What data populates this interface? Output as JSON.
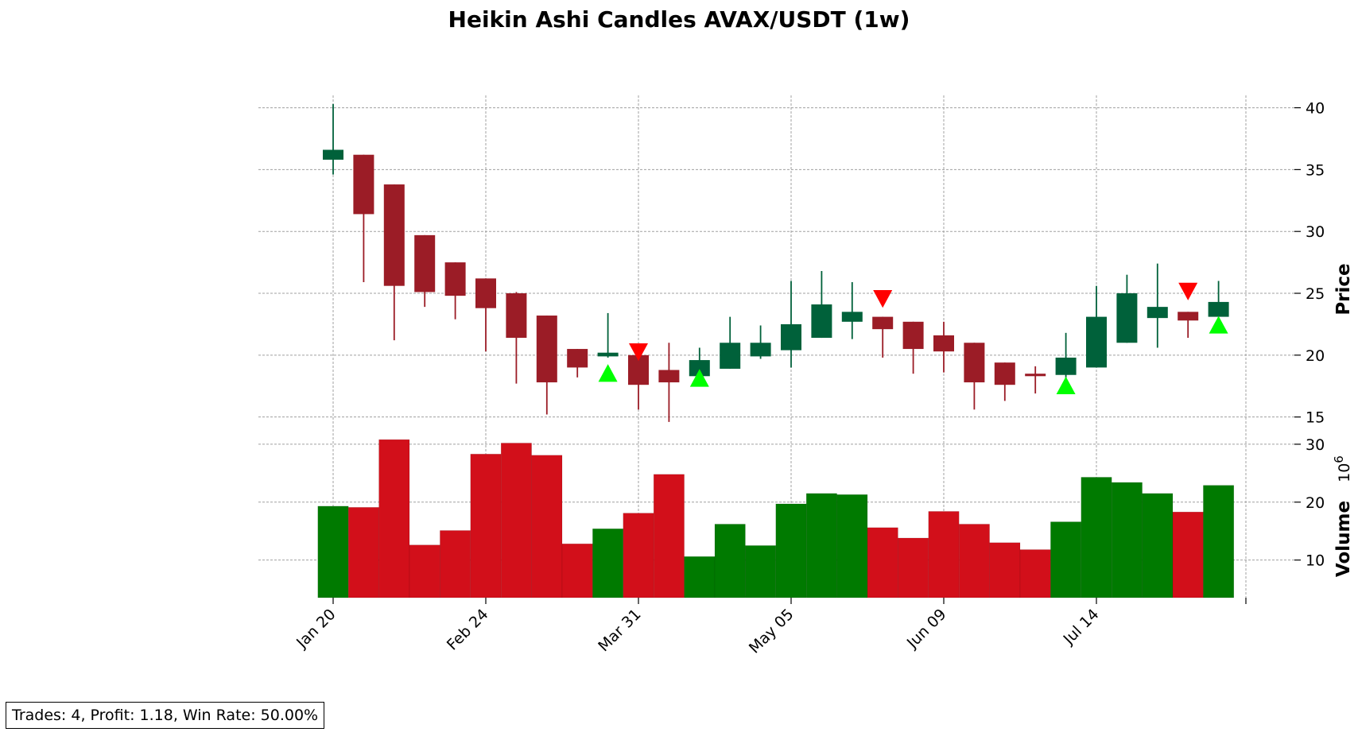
{
  "chart_data": {
    "type": "candlestick",
    "title": "Heikin Ashi Candles AVAX/USDT (1w)",
    "price_axis": {
      "label": "Price",
      "ticks": [
        15,
        20,
        25,
        30,
        35,
        40
      ],
      "range": [
        13.5,
        41
      ]
    },
    "volume_axis": {
      "label": "Volume",
      "multiplier_label": "10",
      "multiplier_exponent": "6",
      "ticks": [
        10,
        20,
        30
      ],
      "range": [
        3.5,
        31.5
      ],
      "unit_note": "×10^6"
    },
    "x_tick_labels": [
      "Jan 20",
      "Feb 24",
      "Mar 31",
      "May 05",
      "Jun 09",
      "Jul 14"
    ],
    "x_tick_week_index": [
      0,
      5,
      10,
      15,
      20,
      25
    ],
    "grid": true,
    "candles": [
      {
        "week": "Jan 20",
        "open": 35.8,
        "high": 40.3,
        "low": 34.6,
        "close": 36.6,
        "volume": 19.3
      },
      {
        "week": "Jan 27",
        "open": 36.2,
        "high": 36.2,
        "low": 25.9,
        "close": 31.4,
        "volume": 19.1
      },
      {
        "week": "Feb 03",
        "open": 33.8,
        "high": 33.8,
        "low": 21.2,
        "close": 25.6,
        "volume": 30.8
      },
      {
        "week": "Feb 10",
        "open": 29.7,
        "high": 29.7,
        "low": 23.9,
        "close": 25.1,
        "volume": 12.6
      },
      {
        "week": "Feb 17",
        "open": 27.5,
        "high": 27.5,
        "low": 22.9,
        "close": 24.8,
        "volume": 15.1
      },
      {
        "week": "Feb 24",
        "open": 26.2,
        "high": 26.2,
        "low": 20.3,
        "close": 23.8,
        "volume": 28.3
      },
      {
        "week": "Mar 03",
        "open": 25.0,
        "high": 25.1,
        "low": 17.7,
        "close": 21.4,
        "volume": 30.2
      },
      {
        "week": "Mar 10",
        "open": 23.2,
        "high": 23.2,
        "low": 15.2,
        "close": 17.8,
        "volume": 28.1
      },
      {
        "week": "Mar 17",
        "open": 20.5,
        "high": 20.5,
        "low": 18.2,
        "close": 19.0,
        "volume": 12.8
      },
      {
        "week": "Mar 24",
        "open": 19.9,
        "high": 23.4,
        "low": 19.8,
        "close": 20.2,
        "volume": 15.4
      },
      {
        "week": "Mar 31",
        "open": 20.0,
        "high": 20.0,
        "low": 15.6,
        "close": 17.6,
        "volume": 18.1
      },
      {
        "week": "Apr 07",
        "open": 18.8,
        "high": 21.0,
        "low": 14.6,
        "close": 17.8,
        "volume": 24.8
      },
      {
        "week": "Apr 14",
        "open": 18.3,
        "high": 20.6,
        "low": 18.3,
        "close": 19.6,
        "volume": 10.6
      },
      {
        "week": "Apr 21",
        "open": 18.9,
        "high": 23.1,
        "low": 18.9,
        "close": 21.0,
        "volume": 16.2
      },
      {
        "week": "Apr 28",
        "open": 19.9,
        "high": 22.4,
        "low": 19.7,
        "close": 21.0,
        "volume": 12.5
      },
      {
        "week": "May 05",
        "open": 20.4,
        "high": 26.0,
        "low": 19.0,
        "close": 22.5,
        "volume": 19.7
      },
      {
        "week": "May 12",
        "open": 21.4,
        "high": 26.8,
        "low": 21.4,
        "close": 24.1,
        "volume": 21.5
      },
      {
        "week": "May 19",
        "open": 22.7,
        "high": 25.9,
        "low": 21.3,
        "close": 23.5,
        "volume": 21.3
      },
      {
        "week": "May 26",
        "open": 23.1,
        "high": 23.1,
        "low": 19.8,
        "close": 22.1,
        "volume": 15.6
      },
      {
        "week": "Jun 02",
        "open": 22.7,
        "high": 22.7,
        "low": 18.5,
        "close": 20.5,
        "volume": 13.8
      },
      {
        "week": "Jun 09",
        "open": 21.6,
        "high": 22.7,
        "low": 18.6,
        "close": 20.3,
        "volume": 18.4
      },
      {
        "week": "Jun 16",
        "open": 21.0,
        "high": 21.0,
        "low": 15.6,
        "close": 17.8,
        "volume": 16.2
      },
      {
        "week": "Jun 23",
        "open": 19.4,
        "high": 19.4,
        "low": 16.3,
        "close": 17.6,
        "volume": 13.0
      },
      {
        "week": "Jun 30",
        "open": 18.5,
        "high": 19.1,
        "low": 16.9,
        "close": 18.3,
        "volume": 11.8
      },
      {
        "week": "Jul 07",
        "open": 18.4,
        "high": 21.8,
        "low": 17.3,
        "close": 19.8,
        "volume": 16.6
      },
      {
        "week": "Jul 14",
        "open": 19.0,
        "high": 25.6,
        "low": 19.0,
        "close": 23.1,
        "volume": 24.3
      },
      {
        "week": "Jul 21",
        "open": 21.0,
        "high": 26.5,
        "low": 21.0,
        "close": 25.0,
        "volume": 23.4
      },
      {
        "week": "Jul 28",
        "open": 23.0,
        "high": 27.4,
        "low": 20.6,
        "close": 23.9,
        "volume": 21.5
      },
      {
        "week": "Aug 04",
        "open": 23.5,
        "high": 23.5,
        "low": 21.4,
        "close": 22.8,
        "volume": 18.3
      },
      {
        "week": "Aug 11",
        "open": 23.1,
        "high": 26.0,
        "low": 23.1,
        "close": 24.3,
        "volume": 22.9
      }
    ],
    "buy_markers": [
      {
        "week": "Mar 24",
        "price": 18.5
      },
      {
        "week": "Apr 14",
        "price": 18.1
      },
      {
        "week": "Jul 07",
        "price": 17.5
      },
      {
        "week": "Aug 11",
        "price": 22.4
      }
    ],
    "sell_markers": [
      {
        "week": "Mar 31",
        "price": 20.3
      },
      {
        "week": "May 26",
        "price": 24.6
      },
      {
        "week": "Aug 04",
        "price": 25.2
      }
    ],
    "colors": {
      "up_candle": "#00613a",
      "down_candle": "#9b1c26",
      "up_volume": "#007a00",
      "down_volume": "#d20f1a",
      "buy_marker": "#00ff00",
      "sell_marker": "#ff0000",
      "grid": "#a0a0a0"
    }
  },
  "stats_text": "Trades: 4, Profit: 1.18, Win Rate: 50.00%"
}
